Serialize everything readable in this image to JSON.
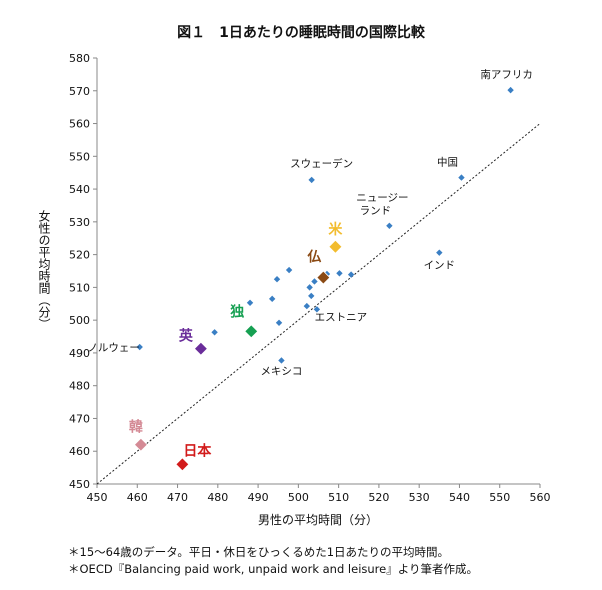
{
  "chart_data": {
    "type": "scatter",
    "title": "図１　1日あたりの睡眠時間の国際比較",
    "xlabel": "男性の平均時間（分）",
    "ylabel": "女性の平均時間（分）",
    "xlim": [
      450,
      560
    ],
    "ylim": [
      450,
      580
    ],
    "x_ticks": [
      450,
      460,
      470,
      480,
      490,
      500,
      510,
      520,
      530,
      540,
      550,
      560
    ],
    "y_ticks": [
      450,
      460,
      470,
      480,
      490,
      500,
      510,
      520,
      530,
      540,
      550,
      560,
      570,
      580
    ],
    "grid": false,
    "reference_line": "y = x (dotted)",
    "series": [
      {
        "name": "",
        "marker": "small-diamond",
        "color": "#3a7fc4",
        "points": [
          {
            "x": 460.6,
            "y": 491.8,
            "label": "ノルウェー"
          },
          {
            "x": 479.2,
            "y": 496.3,
            "label": ""
          },
          {
            "x": 488.0,
            "y": 505.3,
            "label": ""
          },
          {
            "x": 493.5,
            "y": 506.5,
            "label": ""
          },
          {
            "x": 494.7,
            "y": 512.5,
            "label": ""
          },
          {
            "x": 495.2,
            "y": 499.2,
            "label": ""
          },
          {
            "x": 495.8,
            "y": 487.7,
            "label": "メキシコ"
          },
          {
            "x": 497.7,
            "y": 515.3,
            "label": ""
          },
          {
            "x": 502.1,
            "y": 504.3,
            "label": ""
          },
          {
            "x": 502.8,
            "y": 510.0,
            "label": ""
          },
          {
            "x": 503.2,
            "y": 507.4,
            "label": ""
          },
          {
            "x": 503.3,
            "y": 542.8,
            "label": "スウェーデン"
          },
          {
            "x": 504.0,
            "y": 511.8,
            "label": ""
          },
          {
            "x": 504.6,
            "y": 503.3,
            "label": "エストニア"
          },
          {
            "x": 505.8,
            "y": 512.6,
            "label": ""
          },
          {
            "x": 507.1,
            "y": 514.1,
            "label": ""
          },
          {
            "x": 510.2,
            "y": 514.3,
            "label": ""
          },
          {
            "x": 513.1,
            "y": 513.9,
            "label": ""
          },
          {
            "x": 522.6,
            "y": 528.8,
            "label": "ニュージーランド"
          },
          {
            "x": 535.0,
            "y": 520.6,
            "label": "インド"
          },
          {
            "x": 540.5,
            "y": 543.5,
            "label": "中国"
          },
          {
            "x": 552.7,
            "y": 570.2,
            "label": "南アフリカ"
          }
        ]
      },
      {
        "name": "",
        "marker": "large-diamond",
        "points": [
          {
            "x": 509.2,
            "y": 522.4,
            "label": "米",
            "color": "#f2bc2e"
          },
          {
            "x": 506.2,
            "y": 513.0,
            "label": "仏",
            "color": "#8b4a14"
          },
          {
            "x": 488.3,
            "y": 496.6,
            "label": "独",
            "color": "#16a052"
          },
          {
            "x": 475.8,
            "y": 491.3,
            "label": "英",
            "color": "#6a2d9a"
          },
          {
            "x": 460.9,
            "y": 462.0,
            "label": "韓",
            "color": "#d48a95"
          },
          {
            "x": 471.2,
            "y": 456.0,
            "label": "日本",
            "color": "#d21b1b"
          }
        ]
      }
    ]
  },
  "notes": [
    "＊15～64歳のデータ。平日・休日をひっくるめた1日あたりの平均時間。",
    "＊OECD『Balancing paid work, unpaid work and leisure』より筆者作成。"
  ]
}
